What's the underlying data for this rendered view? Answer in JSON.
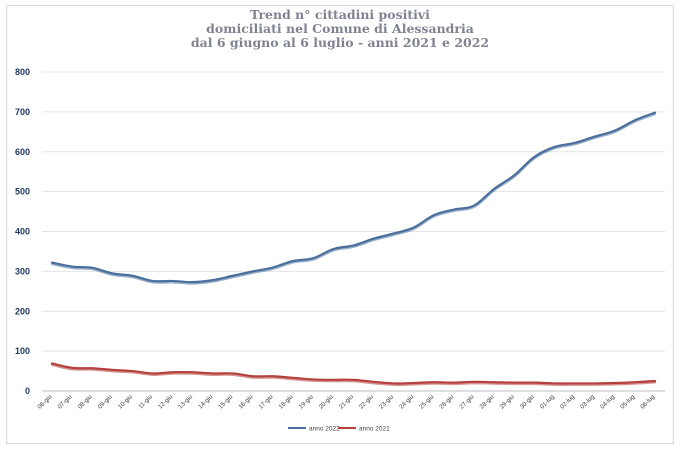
{
  "chart_data": {
    "type": "line",
    "title": [
      "Trend n° cittadini positivi",
      "domiciliati nel Comune di Alessandria",
      "dal 6 giugno al 6 luglio - anni 2021 e 2022"
    ],
    "xlabel": "",
    "ylabel": "",
    "ylim": [
      0,
      800
    ],
    "yticks": [
      "0",
      "100",
      "200",
      "300",
      "400",
      "500",
      "600",
      "700",
      "800"
    ],
    "grid": true,
    "legend_position": "bottom",
    "categories": [
      "06-giu",
      "07-giu",
      "08-giu",
      "09-giu",
      "10-giu",
      "11-giu",
      "12-giu",
      "13-giu",
      "14-giu",
      "15-giu",
      "16-giu",
      "17-giu",
      "18-giu",
      "19-giu",
      "20-giu",
      "21-giu",
      "22-giu",
      "23-giu",
      "24-giu",
      "25-giu",
      "26-giu",
      "27-giu",
      "28-giu",
      "29-giu",
      "30-giu",
      "01-lug",
      "02-lug",
      "03-lug",
      "04-lug",
      "05-lug",
      "06-lug"
    ],
    "series": [
      {
        "name": "anno 2022",
        "color": "#4a6f9c",
        "values": [
          322,
          312,
          309,
          295,
          289,
          276,
          276,
          273,
          278,
          289,
          300,
          310,
          326,
          333,
          356,
          365,
          382,
          395,
          410,
          441,
          455,
          465,
          507,
          541,
          587,
          612,
          622,
          638,
          653,
          679,
          698
        ]
      },
      {
        "name": "anno 2021",
        "color": "#b5413d",
        "values": [
          69,
          58,
          57,
          53,
          50,
          44,
          47,
          47,
          44,
          44,
          37,
          37,
          33,
          29,
          28,
          28,
          23,
          19,
          20,
          22,
          21,
          23,
          22,
          21,
          21,
          19,
          19,
          19,
          20,
          22,
          25
        ]
      }
    ]
  }
}
